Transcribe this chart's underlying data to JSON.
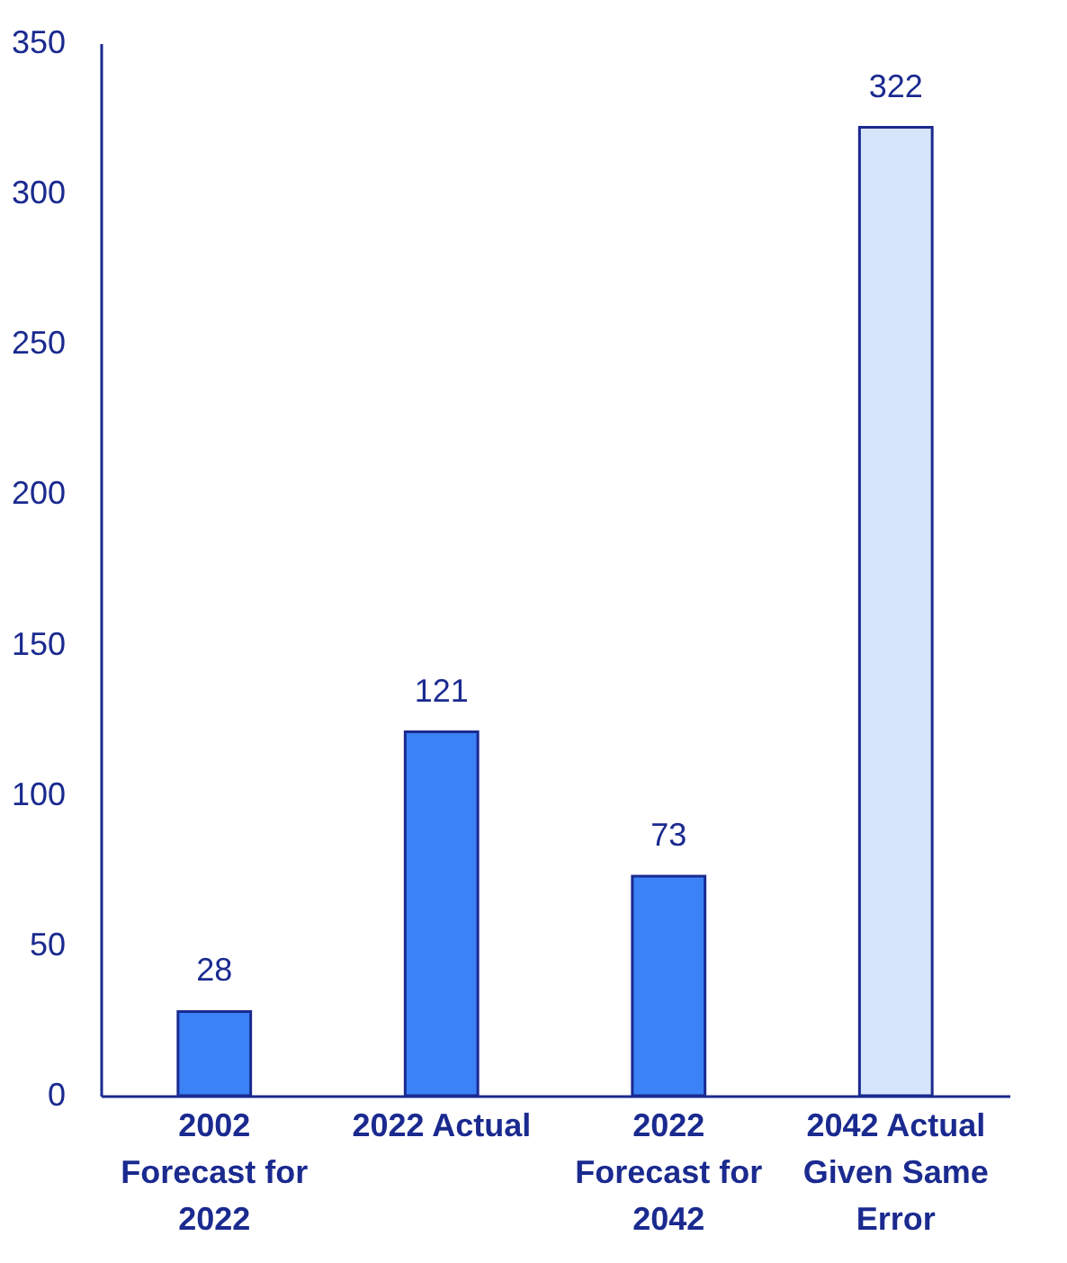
{
  "chart_data": {
    "type": "bar",
    "categories": [
      "2002 Forecast for 2022",
      "2022 Actual",
      "2022 Forecast for 2042",
      "2042 Actual Given Same Error"
    ],
    "values": [
      28,
      121,
      73,
      322
    ],
    "colors": [
      "#3b82f6",
      "#3b82f6",
      "#3b82f6",
      "#d6e4fc"
    ],
    "ylim": [
      0,
      350
    ],
    "yticks": [
      0,
      50,
      100,
      150,
      200,
      250,
      300,
      350
    ],
    "data_labels": true,
    "grid": false
  }
}
